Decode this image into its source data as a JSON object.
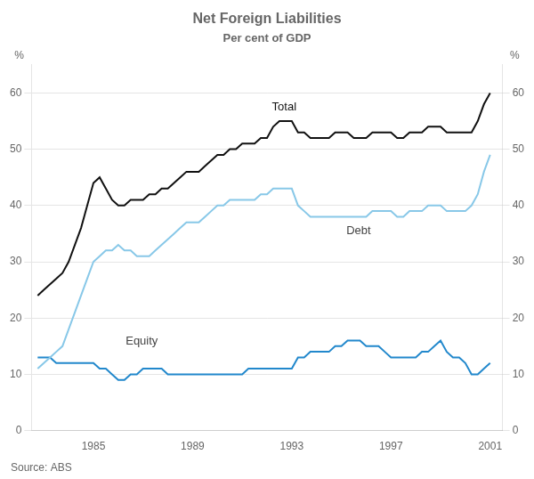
{
  "chart_data": {
    "type": "line",
    "title": "Net Foreign Liabilities",
    "subtitle": "Per cent of GDP",
    "source": "Source: ABS",
    "y_label": "%",
    "y2_label": "%",
    "x": [
      1982.75,
      1983.0,
      1983.25,
      1983.5,
      1983.75,
      1984.0,
      1984.25,
      1984.5,
      1984.75,
      1985.0,
      1985.25,
      1985.5,
      1985.75,
      1986.0,
      1986.25,
      1986.5,
      1986.75,
      1987.0,
      1987.25,
      1987.5,
      1987.75,
      1988.0,
      1988.25,
      1988.5,
      1988.75,
      1989.0,
      1989.25,
      1989.5,
      1989.75,
      1990.0,
      1990.25,
      1990.5,
      1990.75,
      1991.0,
      1991.25,
      1991.5,
      1991.75,
      1992.0,
      1992.25,
      1992.5,
      1992.75,
      1993.0,
      1993.25,
      1993.5,
      1993.75,
      1994.0,
      1994.25,
      1994.5,
      1994.75,
      1995.0,
      1995.25,
      1995.5,
      1995.75,
      1996.0,
      1996.25,
      1996.5,
      1996.75,
      1997.0,
      1997.25,
      1997.5,
      1997.75,
      1998.0,
      1998.25,
      1998.5,
      1998.75,
      1999.0,
      1999.25,
      1999.5,
      1999.75,
      2000.0,
      2000.25,
      2000.5,
      2000.75,
      2001.0
    ],
    "series": [
      {
        "name": "Total",
        "color": "#111111",
        "values": [
          24,
          25,
          26,
          27,
          28,
          30,
          33,
          36,
          40,
          44,
          45,
          43,
          41,
          40,
          40,
          41,
          41,
          41,
          42,
          42,
          43,
          43,
          44,
          45,
          46,
          46,
          46,
          47,
          48,
          49,
          49,
          50,
          50,
          51,
          51,
          51,
          52,
          52,
          54,
          55,
          55,
          55,
          53,
          53,
          52,
          52,
          52,
          52,
          53,
          53,
          53,
          52,
          52,
          52,
          53,
          53,
          53,
          53,
          52,
          52,
          53,
          53,
          53,
          54,
          54,
          54,
          53,
          53,
          53,
          53,
          53,
          55,
          58,
          60
        ]
      },
      {
        "name": "Debt",
        "color": "#88C8E8",
        "values": [
          11,
          12,
          13,
          14,
          15,
          18,
          21,
          24,
          27,
          30,
          31,
          32,
          32,
          33,
          32,
          32,
          31,
          31,
          31,
          32,
          33,
          34,
          35,
          36,
          37,
          37,
          37,
          38,
          39,
          40,
          40,
          41,
          41,
          41,
          41,
          41,
          42,
          42,
          43,
          43,
          43,
          43,
          40,
          39,
          38,
          38,
          38,
          38,
          38,
          38,
          38,
          38,
          38,
          38,
          39,
          39,
          39,
          39,
          38,
          38,
          39,
          39,
          39,
          40,
          40,
          40,
          39,
          39,
          39,
          39,
          40,
          42,
          46,
          49
        ]
      },
      {
        "name": "Equity",
        "color": "#2288CC",
        "values": [
          13,
          13,
          13,
          12,
          12,
          12,
          12,
          12,
          12,
          12,
          11,
          11,
          10,
          9,
          9,
          10,
          10,
          11,
          11,
          11,
          11,
          10,
          10,
          10,
          10,
          10,
          10,
          10,
          10,
          10,
          10,
          10,
          10,
          10,
          11,
          11,
          11,
          11,
          11,
          11,
          11,
          11,
          13,
          13,
          14,
          14,
          14,
          14,
          15,
          15,
          16,
          16,
          16,
          15,
          15,
          15,
          14,
          13,
          13,
          13,
          13,
          13,
          14,
          14,
          15,
          16,
          14,
          13,
          13,
          12,
          10,
          10,
          11,
          12
        ]
      }
    ],
    "annotations": [
      {
        "text": "Total",
        "x": 1992.2,
        "y": 56.5,
        "color": "#111111"
      },
      {
        "text": "Debt",
        "x": 1995.2,
        "y": 34.5,
        "color": "#444444"
      },
      {
        "text": "Equity",
        "x": 1986.3,
        "y": 14.8,
        "color": "#444444"
      }
    ],
    "xlim": [
      1982.5,
      2001.5
    ],
    "xticks": [
      1985,
      1989,
      1993,
      1997,
      2001
    ],
    "ylim": [
      0,
      65
    ],
    "yticks": [
      0,
      10,
      20,
      30,
      40,
      50,
      60
    ],
    "y2lim": [
      0,
      65
    ],
    "y2ticks": [
      0,
      10,
      20,
      30,
      40,
      50,
      60
    ],
    "grid": "y",
    "legend": false
  }
}
